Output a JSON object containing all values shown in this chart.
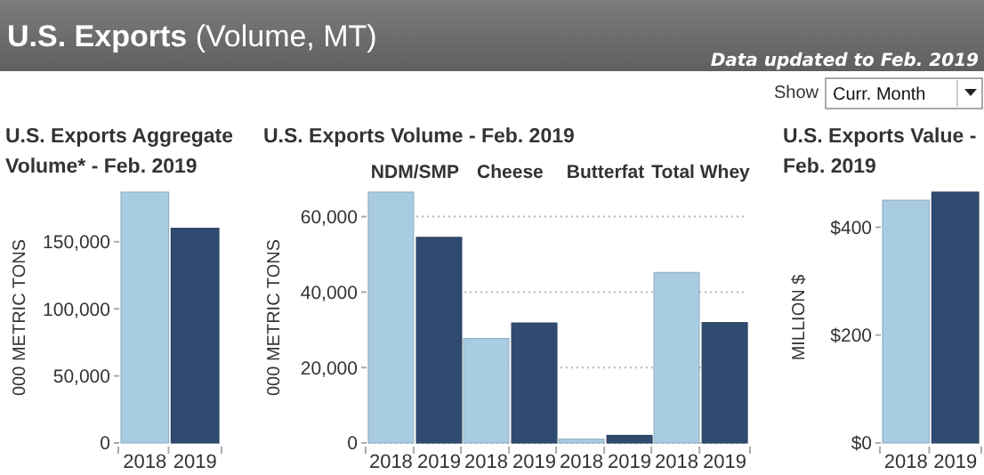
{
  "chart_data": [
    {
      "type": "other",
      "title": "U.S. Exports (Volume, MT)",
      "annotations": [
        "Data updated to Feb. 2019",
        "Show",
        "Curr. Month"
      ]
    },
    {
      "type": "bar",
      "title": "U.S. Exports Aggregate Volume* - Feb. 2019",
      "ylabel": "000 METRIC TONS",
      "categories": [
        "2018",
        "2019"
      ],
      "values": [
        187000,
        160000
      ],
      "colors": [
        "#a8cde3",
        "#2f4b70"
      ],
      "ylim": [
        0,
        187000
      ],
      "yticks": [
        {
          "value": 0,
          "label": "0"
        },
        {
          "value": 50000,
          "label": "50,000"
        },
        {
          "value": 100000,
          "label": "100,000"
        },
        {
          "value": 150000,
          "label": "150,000"
        }
      ]
    },
    {
      "type": "bar",
      "title": "U.S. Exports Volume - Feb. 2019",
      "ylabel": "000 METRIC TONS",
      "categories": [
        "NDM/SMP",
        "Cheese",
        "Butterfat",
        "Total Whey"
      ],
      "series": [
        {
          "name": "2018",
          "color": "#a8cde3",
          "values": [
            66500,
            27700,
            1000,
            45200
          ]
        },
        {
          "name": "2019",
          "color": "#2f4b70",
          "values": [
            54500,
            31800,
            2000,
            31900
          ]
        }
      ],
      "ylim": [
        0,
        66500
      ],
      "yticks": [
        {
          "value": 0,
          "label": "0"
        },
        {
          "value": 20000,
          "label": "20,000"
        },
        {
          "value": 40000,
          "label": "40,000"
        },
        {
          "value": 60000,
          "label": "60,000"
        }
      ],
      "grid": "y"
    },
    {
      "type": "bar",
      "title": "U.S. Exports Value - Feb. 2019",
      "ylabel": "MILLION $",
      "categories": [
        "2018",
        "2019"
      ],
      "values": [
        450,
        465
      ],
      "colors": [
        "#a8cde3",
        "#2f4b70"
      ],
      "ylim": [
        0,
        465
      ],
      "yticks": [
        {
          "value": 0,
          "label": "$0"
        },
        {
          "value": 200,
          "label": "$200"
        },
        {
          "value": 400,
          "label": "$400"
        }
      ]
    }
  ]
}
